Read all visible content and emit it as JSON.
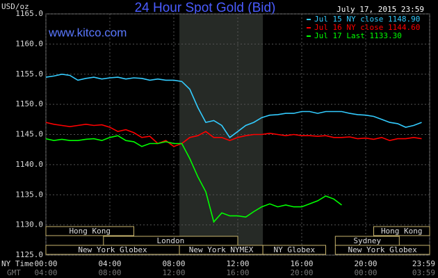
{
  "chart_data": {
    "type": "line",
    "title": "24 Hour Spot Gold (Bid)",
    "date": "July 17, 2015 23:59",
    "unit_label": "USD/oz",
    "site": "www.kitco.com",
    "x_row_labels": [
      "NY Time",
      "GMT"
    ],
    "xlim": [
      0,
      24
    ],
    "xticks": [
      {
        "value": 0,
        "label": "00:00"
      },
      {
        "value": 4,
        "label": "04:00"
      },
      {
        "value": 8,
        "label": "08:00"
      },
      {
        "value": 12,
        "label": "12:00"
      },
      {
        "value": 16,
        "label": "16:00"
      },
      {
        "value": 20,
        "label": "20:00"
      },
      {
        "value": 24,
        "label": "23:59"
      }
    ],
    "gmt_tick_labels": [
      "04:00",
      "08:00",
      "12:00",
      "16:00",
      "20:00",
      "00:00",
      "03:59"
    ],
    "ylim": [
      1125,
      1165
    ],
    "yticks": [
      {
        "value": 1125,
        "label": "1125.0"
      },
      {
        "value": 1130,
        "label": "1130.0"
      },
      {
        "value": 1135,
        "label": "1135.0"
      },
      {
        "value": 1140,
        "label": "1140.0"
      },
      {
        "value": 1145,
        "label": "1145.0"
      },
      {
        "value": 1150,
        "label": "1150.0"
      },
      {
        "value": 1155,
        "label": "1155.0"
      },
      {
        "value": 1160,
        "label": "1160.0"
      },
      {
        "value": 1165,
        "label": "1165.0"
      }
    ],
    "grid": true,
    "highlight": [
      8.35,
      13.57
    ],
    "sessions": [
      {
        "label": "Hong Kong",
        "start": 0,
        "end": 5.5,
        "row": 0
      },
      {
        "label": "Hong Kong",
        "start": 20.5,
        "end": 24,
        "row": 0
      },
      {
        "label": "London",
        "start": 3.6,
        "end": 12,
        "row": 1
      },
      {
        "label": "Sydney",
        "start": 18.1,
        "end": 22.1,
        "row": 1
      },
      {
        "label": "New York Globex",
        "start": 0,
        "end": 8.35,
        "row": 2
      },
      {
        "label": "New York NYMEX",
        "start": 8.35,
        "end": 13.57,
        "row": 2
      },
      {
        "label": "NY Globex",
        "start": 13.57,
        "end": 17.5,
        "row": 2
      },
      {
        "label": "New York Globex",
        "start": 18.1,
        "end": 24,
        "row": 2
      }
    ],
    "x": [
      0,
      0.5,
      1,
      1.5,
      2,
      2.5,
      3,
      3.5,
      4,
      4.5,
      5,
      5.5,
      6,
      6.5,
      7,
      7.5,
      8,
      8.5,
      9,
      9.5,
      10,
      10.5,
      11,
      11.5,
      12,
      12.5,
      13,
      13.5,
      14,
      14.5,
      15,
      15.5,
      16,
      16.5,
      17,
      17.5,
      18,
      18.5,
      19,
      19.5,
      20,
      20.5,
      21,
      21.5,
      22,
      22.5,
      23,
      23.5
    ],
    "series": [
      {
        "name": "Jul 15 NY close 1148.90",
        "color": "#33ccff",
        "values": [
          1154.5,
          1154.7,
          1155,
          1154.8,
          1154,
          1154.3,
          1154.5,
          1154.2,
          1154.4,
          1154.5,
          1154.2,
          1154.4,
          1154.3,
          1154,
          1154.2,
          1154,
          1154,
          1153.8,
          1152.5,
          1149.5,
          1147,
          1147.3,
          1146.5,
          1144.5,
          1145.5,
          1146.5,
          1147,
          1147.8,
          1148.2,
          1148.3,
          1148.5,
          1148.5,
          1148.8,
          1148.8,
          1148.5,
          1148.8,
          1148.8,
          1148.8,
          1148.5,
          1148.3,
          1148.2,
          1148,
          1147.5,
          1147,
          1146.8,
          1146.2,
          1146.5,
          1147
        ]
      },
      {
        "name": "Jul 16 NY close 1144.60",
        "color": "#ff0000",
        "values": [
          1147,
          1146.7,
          1146.5,
          1146.3,
          1146.5,
          1146.7,
          1146.5,
          1146.6,
          1146.2,
          1145.5,
          1145.8,
          1145.3,
          1144.5,
          1144.7,
          1143.5,
          1144,
          1143,
          1143.5,
          1144.5,
          1144.8,
          1145.5,
          1144.5,
          1144.5,
          1144,
          1144.5,
          1144.8,
          1145,
          1145,
          1145.2,
          1145,
          1144.8,
          1145,
          1144.8,
          1144.8,
          1144.7,
          1144.8,
          1144.5,
          1144.5,
          1144.6,
          1144.3,
          1144.4,
          1144.2,
          1144.5,
          1144,
          1144.3,
          1144.3,
          1144.5,
          1144.3
        ]
      },
      {
        "name": "Jul 17 Last 1133.30",
        "color": "#00ff00",
        "values": [
          1144.3,
          1144,
          1144.2,
          1144,
          1144,
          1144.2,
          1144.3,
          1144,
          1144.5,
          1144.8,
          1144,
          1143.8,
          1143,
          1143.5,
          1143.5,
          1143.8,
          1143.5,
          1143.5,
          1141,
          1138,
          1135.5,
          1130.5,
          1132,
          1131.5,
          1131.5,
          1131.3,
          1132.2,
          1133,
          1133.5,
          1133,
          1133.3,
          1133,
          1133,
          1133.5,
          1134,
          1134.8,
          1134.3,
          1133.3,
          null,
          null,
          null,
          null,
          null,
          null,
          null,
          null,
          null,
          null
        ]
      }
    ]
  }
}
